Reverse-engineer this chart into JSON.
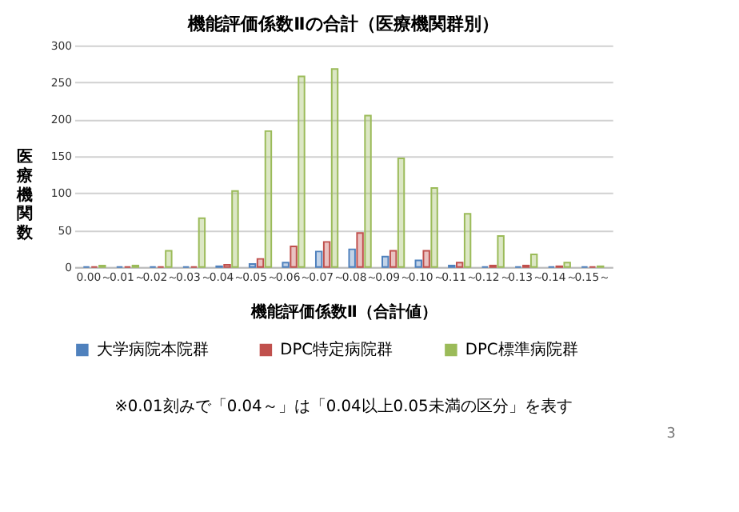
{
  "chart_data": {
    "type": "bar",
    "title": "機能評価係数Ⅱの合計（医療機関群別）",
    "xlabel": "機能評価係数Ⅱ（合計値）",
    "ylabel": "医療機関数",
    "categories": [
      "0.00～",
      "0.01～",
      "0.02～",
      "0.03～",
      "0.04～",
      "0.05～",
      "0.06～",
      "0.07～",
      "0.08～",
      "0.09～",
      "0.10～",
      "0.11～",
      "0.12～",
      "0.13～",
      "0.14～",
      "0.15～"
    ],
    "series": [
      {
        "name": "大学病院本院群",
        "color": "#4f81bd",
        "values": [
          0,
          0,
          0,
          0,
          1,
          4,
          6,
          21,
          24,
          14,
          9,
          2,
          0,
          0,
          0,
          0
        ]
      },
      {
        "name": "DPC特定病院群",
        "color": "#c0504d",
        "values": [
          0,
          0,
          0,
          0,
          3,
          11,
          28,
          34,
          46,
          22,
          22,
          6,
          2,
          2,
          1,
          0
        ]
      },
      {
        "name": "DPC標準病院群",
        "color": "#9bbb59",
        "values": [
          2,
          2,
          22,
          66,
          103,
          184,
          258,
          268,
          205,
          147,
          107,
          72,
          42,
          17,
          6,
          1
        ]
      }
    ],
    "ylim": [
      0,
      300
    ],
    "yticks": [
      0,
      50,
      100,
      150,
      200,
      250,
      300
    ],
    "grid": "y",
    "legend": "bottom",
    "annotations": [
      "※0.01刻みで「0.04～」は「0.04以上0.05未満の区分」を表す",
      "3"
    ]
  }
}
